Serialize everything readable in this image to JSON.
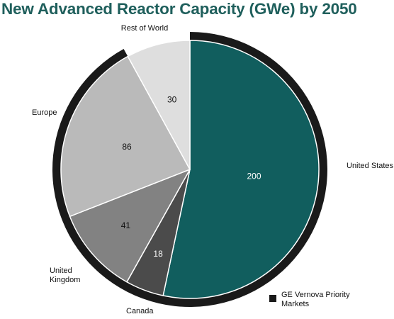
{
  "chart_data": {
    "type": "pie",
    "title": "New Advanced Reactor Capacity (GWe) by 2050",
    "categories": [
      "United States",
      "Canada",
      "United Kingdom",
      "Europe",
      "Rest of World"
    ],
    "values": [
      200,
      18,
      41,
      86,
      30
    ],
    "colors": [
      "#115e5e",
      "#4b4b4b",
      "#828282",
      "#bababa",
      "#dedede"
    ],
    "highlight": {
      "label": "GE Vernova Priority Markets",
      "color": "#1a1a1a",
      "categories": [
        "United States",
        "Canada",
        "United Kingdom",
        "Europe"
      ]
    },
    "legend": "bottom-right",
    "start_angle_deg": 0,
    "direction": "clockwise"
  }
}
